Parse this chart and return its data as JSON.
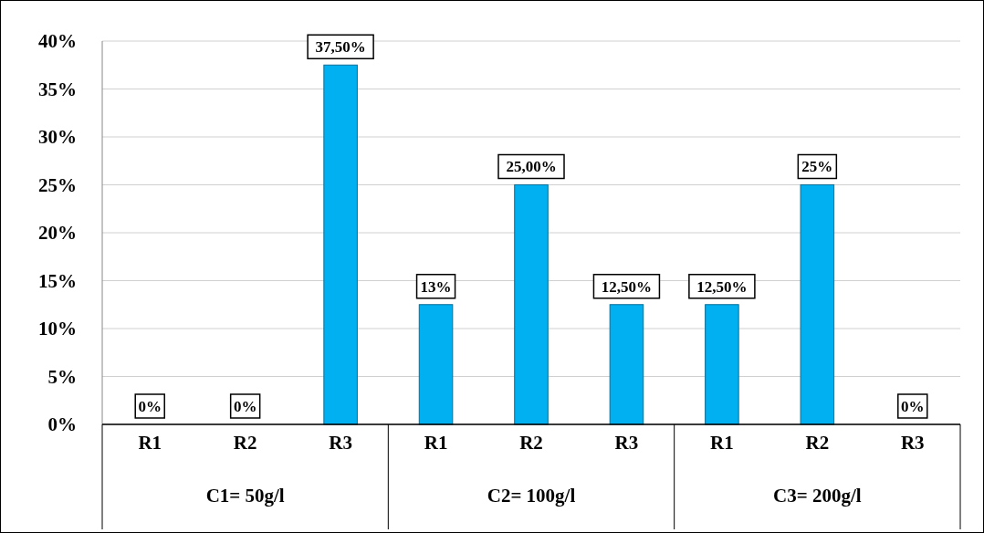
{
  "chart_data": {
    "type": "bar",
    "categories": [
      "R1",
      "R2",
      "R3",
      "R1",
      "R2",
      "R3",
      "R1",
      "R2",
      "R3"
    ],
    "values": [
      0,
      0,
      37.5,
      12.5,
      25,
      12.5,
      12.5,
      25,
      0
    ],
    "value_labels": [
      "0%",
      "0%",
      "37,50%",
      "13%",
      "25,00%",
      "12,50%",
      "12,50%",
      "25%",
      "0%"
    ],
    "color": "#00b0f0",
    "ylim": [
      0,
      40
    ],
    "yticks": [
      {
        "value": 0,
        "label": "0%"
      },
      {
        "value": 5,
        "label": "5%"
      },
      {
        "value": 10,
        "label": "10%"
      },
      {
        "value": 15,
        "label": "15%"
      },
      {
        "value": 20,
        "label": "20%"
      },
      {
        "value": 25,
        "label": "25%"
      },
      {
        "value": 30,
        "label": "30%"
      },
      {
        "value": 35,
        "label": "35%"
      },
      {
        "value": 40,
        "label": "40%"
      }
    ],
    "grid": "y",
    "annotations": [
      "C1= 50g/l",
      "C2= 100g/l",
      "C3= 200g/l"
    ]
  }
}
